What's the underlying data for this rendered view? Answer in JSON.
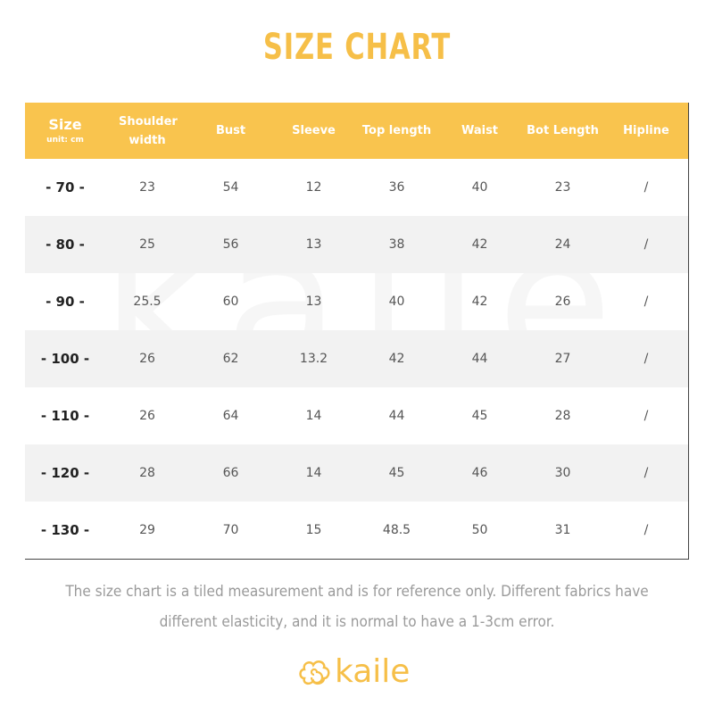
{
  "header": {
    "title": "SIZE CHART"
  },
  "table": {
    "columns": [
      "Size",
      "Shoulder width",
      "Bust",
      "Sleeve",
      "Top length",
      "Waist",
      "Bot Length",
      "Hipline"
    ],
    "unit": "unit: cm",
    "rows": [
      [
        "- 70 -",
        "23",
        "54",
        "12",
        "36",
        "40",
        "23",
        "/"
      ],
      [
        "- 80 -",
        "25",
        "56",
        "13",
        "38",
        "42",
        "24",
        "/"
      ],
      [
        "- 90 -",
        "25.5",
        "60",
        "13",
        "40",
        "42",
        "26",
        "/"
      ],
      [
        "- 100 -",
        "26",
        "62",
        "13.2",
        "42",
        "44",
        "27",
        "/"
      ],
      [
        "- 110 -",
        "26",
        "64",
        "14",
        "44",
        "45",
        "28",
        "/"
      ],
      [
        "- 120 -",
        "28",
        "66",
        "14",
        "45",
        "46",
        "30",
        "/"
      ],
      [
        "- 130 -",
        "29",
        "70",
        "15",
        "48.5",
        "50",
        "31",
        "/"
      ]
    ]
  },
  "note": "The size chart is a tiled measurement and is for reference only. Different fabrics have different elasticity, and it is normal to have a 1-3cm error.",
  "brand": "kaile"
}
